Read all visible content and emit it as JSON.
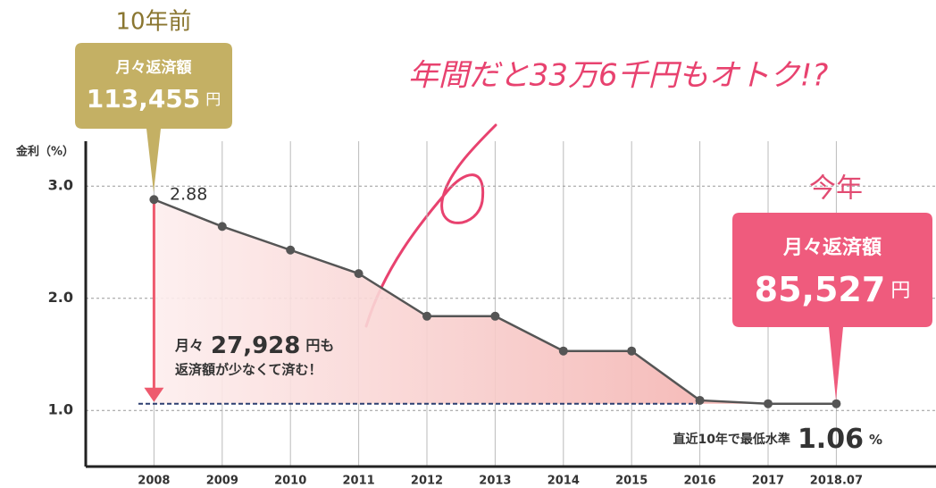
{
  "chart_data": {
    "type": "line",
    "y_label": "金利（%）",
    "headline": "年間だと33万6千円もオトク!?",
    "categories": [
      "2008",
      "2009",
      "2010",
      "2011",
      "2012",
      "2013",
      "2014",
      "2015",
      "2016",
      "2017",
      "2018.07"
    ],
    "values": [
      2.88,
      2.64,
      2.43,
      2.22,
      1.84,
      1.84,
      1.53,
      1.53,
      1.09,
      1.06,
      1.06
    ],
    "color": "#555555",
    "area_color": "#f2a7a4",
    "ylim": [
      0.5,
      3.4
    ],
    "yticks": [
      {
        "value": 1,
        "label": "1.0"
      },
      {
        "value": 2,
        "label": "2.0"
      },
      {
        "value": 3,
        "label": "3.0"
      }
    ],
    "grid": true,
    "past": {
      "title": "10年前",
      "label": "月々返済額",
      "amount": "113,455",
      "unit": "円",
      "color": "#c4b064"
    },
    "now": {
      "title": "今年",
      "label": "月々返済額",
      "amount": "85,527",
      "unit": "円",
      "color": "#ef5b7d"
    },
    "saving": {
      "prefix": "月々",
      "amount": "27,928",
      "suffix": "円も",
      "line2": "返済額が少なくて済む！"
    },
    "min_level": {
      "label": "直近10年で最低水準",
      "value": 1.06,
      "unit": "%"
    }
  }
}
